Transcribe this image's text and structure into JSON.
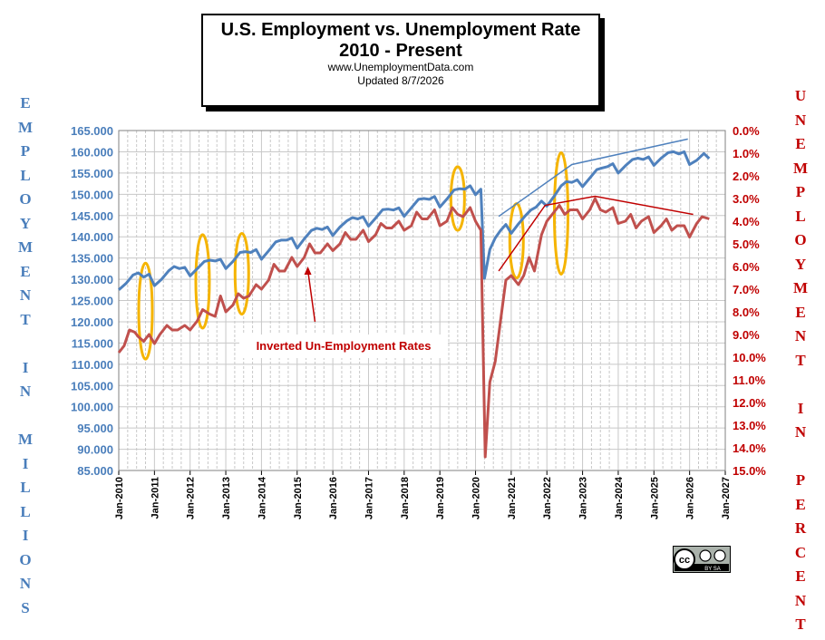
{
  "title": {
    "line1": "U.S. Employment vs. Unemployment Rate",
    "line2": "2010 - Present",
    "line3": "www.UnemploymentData.com",
    "line4": "Updated  8/7/2026"
  },
  "left_axis_title": "EMPLOYMENT IN MILLIONS",
  "right_axis_title": "UNEMPLOYMENT IN PERCENT",
  "annotation": "Inverted Un-Employment Rates",
  "license_badge": {
    "text": "cc",
    "sub": "BY SA"
  },
  "chart_data": {
    "type": "line",
    "x": {
      "ticks": [
        "Jan-2010",
        "Jan-2011",
        "Jan-2012",
        "Jan-2013",
        "Jan-2014",
        "Jan-2015",
        "Jan-2016",
        "Jan-2017",
        "Jan-2018",
        "Jan-2019",
        "Jan-2020",
        "Jan-2021",
        "Jan-2022",
        "Jan-2023",
        "Jan-2024",
        "Jan-2025",
        "Jan-2026",
        "Jan-2027"
      ],
      "range": [
        2010,
        2027
      ]
    },
    "y_left": {
      "ticks": [
        "165.000",
        "160.000",
        "155.000",
        "150.000",
        "145.000",
        "140.000",
        "135.000",
        "130.000",
        "125.000",
        "120.000",
        "115.000",
        "110.000",
        "105.000",
        "100.000",
        "95.000",
        "90.000",
        "85.000"
      ],
      "range": [
        85,
        165
      ]
    },
    "y_right": {
      "ticks": [
        "0.0%",
        "1.0%",
        "2.0%",
        "3.0%",
        "4.0%",
        "5.0%",
        "6.0%",
        "7.0%",
        "8.0%",
        "9.0%",
        "10.0%",
        "11.0%",
        "12.0%",
        "13.0%",
        "14.0%",
        "15.0%"
      ],
      "range": [
        0,
        15
      ],
      "inverted": true
    },
    "grid": true,
    "series": [
      {
        "axis": "left",
        "color": "#4f81bd",
        "points": [
          [
            2010.0,
            127.5
          ],
          [
            2010.2,
            129.0
          ],
          [
            2010.4,
            131.0
          ],
          [
            2010.55,
            131.5
          ],
          [
            2010.7,
            130.5
          ],
          [
            2010.85,
            131.2
          ],
          [
            2011.0,
            128.5
          ],
          [
            2011.2,
            130.0
          ],
          [
            2011.4,
            132.0
          ],
          [
            2011.55,
            133.0
          ],
          [
            2011.7,
            132.5
          ],
          [
            2011.85,
            132.8
          ],
          [
            2012.0,
            130.8
          ],
          [
            2012.2,
            132.5
          ],
          [
            2012.4,
            134.2
          ],
          [
            2012.55,
            134.5
          ],
          [
            2012.7,
            134.3
          ],
          [
            2012.85,
            134.7
          ],
          [
            2013.0,
            132.5
          ],
          [
            2013.2,
            134.2
          ],
          [
            2013.4,
            136.3
          ],
          [
            2013.55,
            136.5
          ],
          [
            2013.7,
            136.3
          ],
          [
            2013.85,
            137.0
          ],
          [
            2014.0,
            134.7
          ],
          [
            2014.2,
            136.7
          ],
          [
            2014.4,
            138.8
          ],
          [
            2014.55,
            139.2
          ],
          [
            2014.7,
            139.2
          ],
          [
            2014.85,
            139.7
          ],
          [
            2015.0,
            137.3
          ],
          [
            2015.2,
            139.5
          ],
          [
            2015.4,
            141.5
          ],
          [
            2015.55,
            142.0
          ],
          [
            2015.7,
            141.7
          ],
          [
            2015.85,
            142.3
          ],
          [
            2016.0,
            140.3
          ],
          [
            2016.2,
            142.3
          ],
          [
            2016.4,
            143.8
          ],
          [
            2016.55,
            144.5
          ],
          [
            2016.7,
            144.2
          ],
          [
            2016.85,
            144.7
          ],
          [
            2017.0,
            142.5
          ],
          [
            2017.2,
            144.4
          ],
          [
            2017.4,
            146.4
          ],
          [
            2017.55,
            146.5
          ],
          [
            2017.7,
            146.3
          ],
          [
            2017.85,
            146.8
          ],
          [
            2018.0,
            144.8
          ],
          [
            2018.2,
            146.8
          ],
          [
            2018.4,
            148.8
          ],
          [
            2018.55,
            149.0
          ],
          [
            2018.7,
            148.8
          ],
          [
            2018.85,
            149.5
          ],
          [
            2019.0,
            147.0
          ],
          [
            2019.2,
            148.9
          ],
          [
            2019.4,
            151.0
          ],
          [
            2019.55,
            151.3
          ],
          [
            2019.7,
            151.2
          ],
          [
            2019.85,
            152.0
          ],
          [
            2020.0,
            149.9
          ],
          [
            2020.15,
            151.2
          ],
          [
            2020.25,
            130.2
          ],
          [
            2020.4,
            137.0
          ],
          [
            2020.55,
            139.7
          ],
          [
            2020.7,
            141.5
          ],
          [
            2020.85,
            142.9
          ],
          [
            2021.0,
            140.8
          ],
          [
            2021.2,
            143.0
          ],
          [
            2021.4,
            145.0
          ],
          [
            2021.55,
            146.3
          ],
          [
            2021.7,
            147.0
          ],
          [
            2021.85,
            148.4
          ],
          [
            2022.0,
            147.2
          ],
          [
            2022.2,
            149.5
          ],
          [
            2022.4,
            152.0
          ],
          [
            2022.55,
            153.0
          ],
          [
            2022.7,
            152.8
          ],
          [
            2022.85,
            153.4
          ],
          [
            2023.0,
            151.8
          ],
          [
            2023.2,
            153.8
          ],
          [
            2023.4,
            155.8
          ],
          [
            2023.55,
            156.2
          ],
          [
            2023.7,
            156.5
          ],
          [
            2023.85,
            157.2
          ],
          [
            2024.0,
            155.0
          ],
          [
            2024.2,
            156.7
          ],
          [
            2024.4,
            158.2
          ],
          [
            2024.55,
            158.5
          ],
          [
            2024.7,
            158.2
          ],
          [
            2024.85,
            158.8
          ],
          [
            2025.0,
            156.8
          ],
          [
            2025.2,
            158.5
          ],
          [
            2025.4,
            159.8
          ],
          [
            2025.55,
            160.0
          ],
          [
            2025.7,
            159.5
          ],
          [
            2025.85,
            160.0
          ],
          [
            2026.0,
            157.0
          ],
          [
            2026.2,
            158.0
          ],
          [
            2026.4,
            159.6
          ],
          [
            2026.55,
            158.4
          ]
        ]
      },
      {
        "axis": "right",
        "color": "#c0504d",
        "points": [
          [
            2010.0,
            9.8
          ],
          [
            2010.15,
            9.5
          ],
          [
            2010.3,
            8.8
          ],
          [
            2010.45,
            8.9
          ],
          [
            2010.55,
            9.1
          ],
          [
            2010.7,
            9.3
          ],
          [
            2010.85,
            9.0
          ],
          [
            2011.0,
            9.4
          ],
          [
            2011.15,
            9.0
          ],
          [
            2011.35,
            8.6
          ],
          [
            2011.5,
            8.8
          ],
          [
            2011.65,
            8.8
          ],
          [
            2011.85,
            8.6
          ],
          [
            2012.0,
            8.8
          ],
          [
            2012.2,
            8.4
          ],
          [
            2012.35,
            7.9
          ],
          [
            2012.55,
            8.1
          ],
          [
            2012.7,
            8.2
          ],
          [
            2012.85,
            7.3
          ],
          [
            2013.0,
            8.0
          ],
          [
            2013.2,
            7.7
          ],
          [
            2013.35,
            7.2
          ],
          [
            2013.5,
            7.4
          ],
          [
            2013.65,
            7.3
          ],
          [
            2013.85,
            6.8
          ],
          [
            2014.0,
            7.0
          ],
          [
            2014.2,
            6.6
          ],
          [
            2014.35,
            5.9
          ],
          [
            2014.5,
            6.2
          ],
          [
            2014.65,
            6.2
          ],
          [
            2014.85,
            5.6
          ],
          [
            2015.0,
            6.0
          ],
          [
            2015.2,
            5.6
          ],
          [
            2015.35,
            5.0
          ],
          [
            2015.5,
            5.4
          ],
          [
            2015.65,
            5.4
          ],
          [
            2015.85,
            5.0
          ],
          [
            2016.0,
            5.3
          ],
          [
            2016.2,
            5.0
          ],
          [
            2016.35,
            4.5
          ],
          [
            2016.5,
            4.8
          ],
          [
            2016.65,
            4.8
          ],
          [
            2016.85,
            4.4
          ],
          [
            2017.0,
            4.9
          ],
          [
            2017.2,
            4.6
          ],
          [
            2017.35,
            4.1
          ],
          [
            2017.5,
            4.3
          ],
          [
            2017.65,
            4.3
          ],
          [
            2017.85,
            4.0
          ],
          [
            2018.0,
            4.4
          ],
          [
            2018.2,
            4.2
          ],
          [
            2018.35,
            3.6
          ],
          [
            2018.5,
            3.9
          ],
          [
            2018.65,
            3.9
          ],
          [
            2018.85,
            3.5
          ],
          [
            2019.0,
            4.2
          ],
          [
            2019.2,
            4.0
          ],
          [
            2019.35,
            3.4
          ],
          [
            2019.5,
            3.7
          ],
          [
            2019.65,
            3.8
          ],
          [
            2019.85,
            3.4
          ],
          [
            2020.0,
            4.0
          ],
          [
            2020.15,
            4.4
          ],
          [
            2020.27,
            14.4
          ],
          [
            2020.4,
            11.1
          ],
          [
            2020.55,
            10.2
          ],
          [
            2020.7,
            8.4
          ],
          [
            2020.85,
            6.6
          ],
          [
            2021.0,
            6.4
          ],
          [
            2021.2,
            6.8
          ],
          [
            2021.35,
            6.4
          ],
          [
            2021.5,
            5.6
          ],
          [
            2021.65,
            6.2
          ],
          [
            2021.85,
            4.6
          ],
          [
            2022.0,
            4.0
          ],
          [
            2022.2,
            3.6
          ],
          [
            2022.35,
            3.3
          ],
          [
            2022.5,
            3.7
          ],
          [
            2022.65,
            3.5
          ],
          [
            2022.85,
            3.5
          ],
          [
            2023.0,
            3.9
          ],
          [
            2023.2,
            3.5
          ],
          [
            2023.35,
            3.0
          ],
          [
            2023.5,
            3.5
          ],
          [
            2023.65,
            3.6
          ],
          [
            2023.85,
            3.4
          ],
          [
            2024.0,
            4.1
          ],
          [
            2024.2,
            4.0
          ],
          [
            2024.35,
            3.7
          ],
          [
            2024.5,
            4.3
          ],
          [
            2024.65,
            4.0
          ],
          [
            2024.85,
            3.8
          ],
          [
            2025.0,
            4.5
          ],
          [
            2025.2,
            4.2
          ],
          [
            2025.35,
            3.9
          ],
          [
            2025.5,
            4.4
          ],
          [
            2025.65,
            4.2
          ],
          [
            2025.85,
            4.2
          ],
          [
            2026.0,
            4.7
          ],
          [
            2026.2,
            4.1
          ],
          [
            2026.35,
            3.8
          ],
          [
            2026.55,
            3.9
          ]
        ]
      }
    ],
    "trendlines": [
      {
        "axis": "left",
        "color": "#4f81bd",
        "points": [
          [
            2020.65,
            144.8
          ],
          [
            2022.7,
            157.0
          ],
          [
            2025.95,
            163.0
          ]
        ]
      },
      {
        "axis": "right",
        "color": "#c00000",
        "points": [
          [
            2020.65,
            6.2
          ],
          [
            2021.95,
            3.3
          ],
          [
            2023.35,
            2.9
          ],
          [
            2026.1,
            3.7
          ]
        ]
      }
    ],
    "highlight_ellipses": [
      {
        "x": 2010.75,
        "y": [
          133.8,
          111.2
        ]
      },
      {
        "x": 2012.35,
        "y": [
          140.5,
          118.5
        ]
      },
      {
        "x": 2013.45,
        "y": [
          140.8,
          121.8
        ]
      },
      {
        "x": 2019.5,
        "y": [
          156.5,
          141.5
        ]
      },
      {
        "x": 2021.15,
        "y": [
          147.8,
          130.3
        ]
      },
      {
        "x": 2022.4,
        "y": [
          159.8,
          131.2
        ]
      }
    ],
    "annotation_arrow": {
      "from": [
        2015.5,
        120.0
      ],
      "to": [
        2015.3,
        133.0
      ]
    }
  }
}
